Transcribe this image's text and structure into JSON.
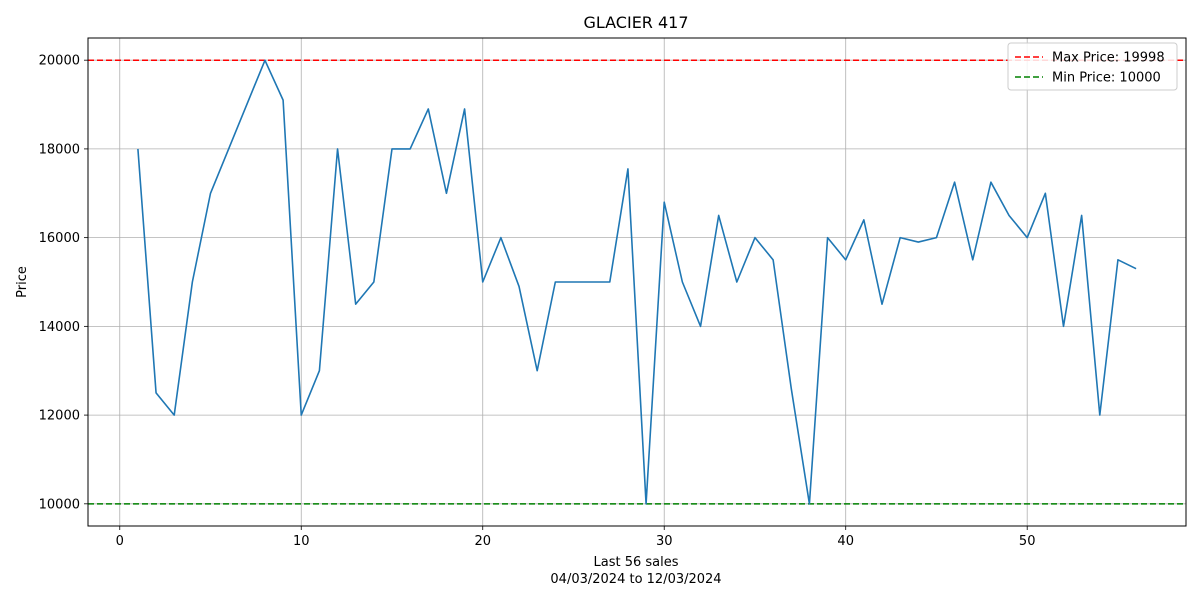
{
  "chart_data": {
    "type": "line",
    "title": "GLACIER 417",
    "xlabel": "Last 56 sales",
    "xlabel_sub": "04/03/2024 to 12/03/2024",
    "ylabel": "Price",
    "xlim": [
      -1.75,
      58.75
    ],
    "ylim": [
      9500,
      20500
    ],
    "xticks": [
      0,
      10,
      20,
      30,
      40,
      50
    ],
    "yticks": [
      10000,
      12000,
      14000,
      16000,
      18000,
      20000
    ],
    "grid": true,
    "legend_position": "top-right",
    "series": [
      {
        "color": "#1f77b4",
        "x": [
          1,
          2,
          3,
          4,
          5,
          6,
          7,
          8,
          9,
          10,
          11,
          12,
          13,
          14,
          15,
          16,
          17,
          18,
          19,
          20,
          21,
          22,
          23,
          24,
          25,
          26,
          27,
          28,
          29,
          30,
          31,
          32,
          33,
          34,
          35,
          36,
          37,
          38,
          39,
          40,
          41,
          42,
          43,
          44,
          45,
          46,
          47,
          48,
          49,
          50,
          51,
          52,
          53,
          54,
          55,
          56
        ],
        "y": [
          18000,
          12500,
          12000,
          15000,
          17000,
          18000,
          19000,
          19998,
          19100,
          12000,
          13000,
          18000,
          14500,
          15000,
          18000,
          18000,
          18900,
          17000,
          18900,
          15000,
          16000,
          14900,
          13000,
          15000,
          15000,
          15000,
          15000,
          17550,
          10000,
          16800,
          15000,
          14000,
          16500,
          15000,
          16000,
          15500,
          12600,
          10000,
          16000,
          15500,
          16400,
          14500,
          16000,
          15900,
          16000,
          17250,
          15500,
          17250,
          16500,
          16000,
          17000,
          14000,
          16500,
          12000,
          15500,
          15300
        ]
      }
    ],
    "hlines": [
      {
        "name": "Max Price: 19998",
        "value": 19998,
        "color": "#ff0000",
        "style": "dashed"
      },
      {
        "name": "Min Price: 10000",
        "value": 10000,
        "color": "#008000",
        "style": "dashed"
      }
    ]
  }
}
